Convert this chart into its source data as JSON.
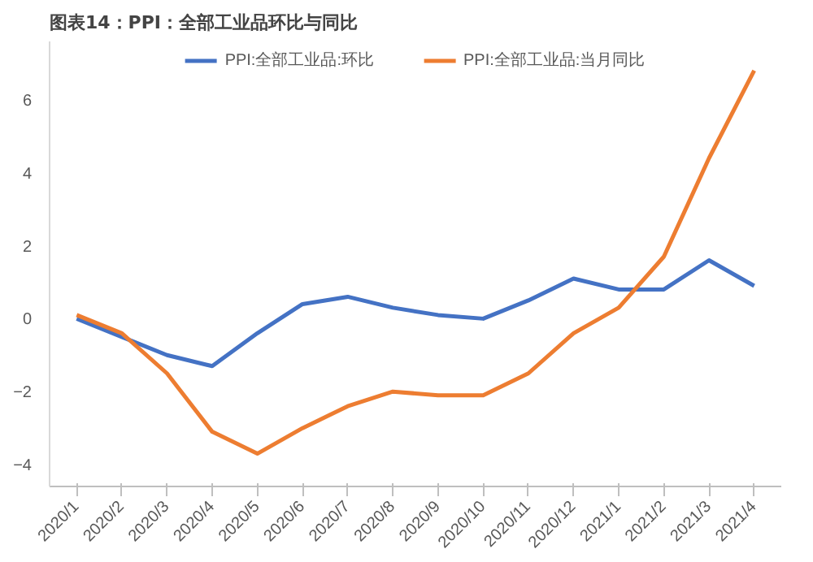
{
  "chart_data": {
    "type": "line",
    "title": "图表14：PPI：全部工业品环比与同比",
    "categories": [
      "2020/1",
      "2020/2",
      "2020/3",
      "2020/4",
      "2020/5",
      "2020/6",
      "2020/7",
      "2020/8",
      "2020/9",
      "2020/10",
      "2020/11",
      "2020/12",
      "2021/1",
      "2021/2",
      "2021/3",
      "2021/4"
    ],
    "series": [
      {
        "name": "PPI:全部工业品:环比",
        "color": "#4472c4",
        "values": [
          0.0,
          -0.5,
          -1.0,
          -1.3,
          -0.4,
          0.4,
          0.6,
          0.3,
          0.1,
          0.0,
          0.5,
          1.1,
          0.8,
          0.8,
          1.6,
          0.9
        ]
      },
      {
        "name": "PPI:全部工业品:当月同比",
        "color": "#ed7d31",
        "values": [
          0.1,
          -0.4,
          -1.5,
          -3.1,
          -3.7,
          -3.0,
          -2.4,
          -2.0,
          -2.1,
          -2.1,
          -1.5,
          -0.4,
          0.3,
          1.7,
          4.4,
          6.8
        ]
      }
    ],
    "ylim": [
      -4.6,
      7.6
    ],
    "yticks": [
      -4,
      -2,
      0,
      2,
      4,
      6
    ],
    "grid": false,
    "legend": "top",
    "marker": "none",
    "line_style": "solid"
  }
}
